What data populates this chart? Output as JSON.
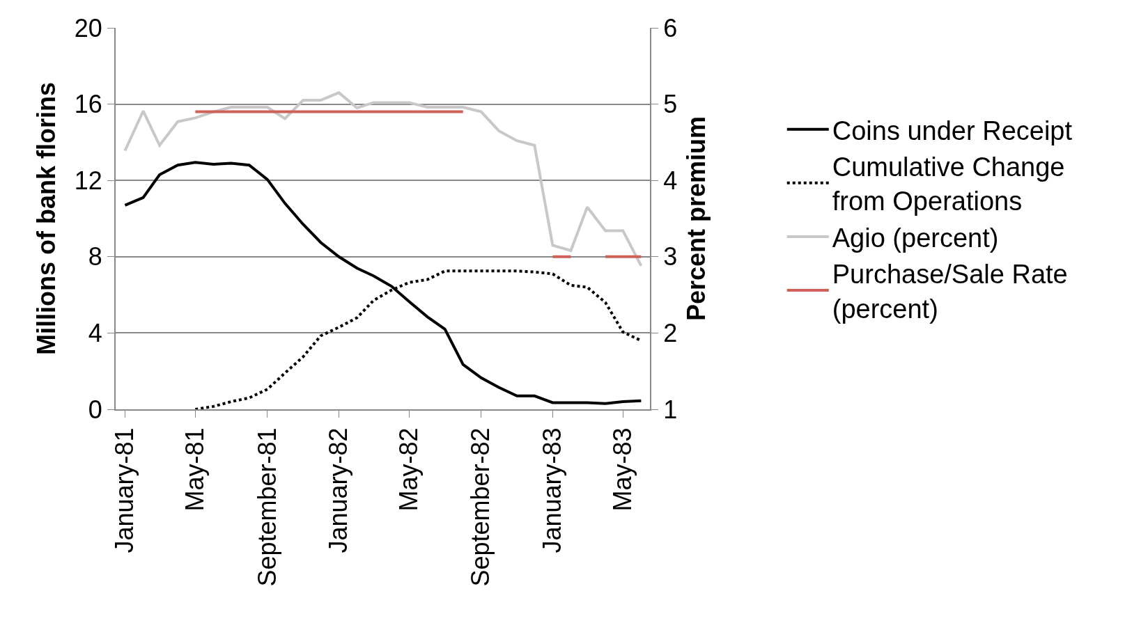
{
  "chart_data": {
    "type": "line",
    "ylabel": "Millions of bank florins",
    "y2label": "Percent premium",
    "x": [
      "1981-01",
      "1981-02",
      "1981-03",
      "1981-04",
      "1981-05",
      "1981-06",
      "1981-07",
      "1981-08",
      "1981-09",
      "1981-10",
      "1981-11",
      "1981-12",
      "1982-01",
      "1982-02",
      "1982-03",
      "1982-04",
      "1982-05",
      "1982-06",
      "1982-07",
      "1982-08",
      "1982-09",
      "1982-10",
      "1982-11",
      "1982-12",
      "1983-01",
      "1983-02",
      "1983-03",
      "1983-04",
      "1983-05",
      "1983-06"
    ],
    "xlim": [
      "1980-12-16",
      "1983-06-16"
    ],
    "xticks": [
      {
        "value": "1981-01",
        "label": "January-81"
      },
      {
        "value": "1981-05",
        "label": "May-81"
      },
      {
        "value": "1981-09",
        "label": "September-81"
      },
      {
        "value": "1982-01",
        "label": "January-82"
      },
      {
        "value": "1982-05",
        "label": "May-82"
      },
      {
        "value": "1982-09",
        "label": "September-82"
      },
      {
        "value": "1983-01",
        "label": "January-83"
      },
      {
        "value": "1983-05",
        "label": "May-83"
      }
    ],
    "ylim": [
      0,
      20
    ],
    "yticks": [
      0,
      4,
      8,
      12,
      16,
      20
    ],
    "y2lim": [
      1,
      6
    ],
    "y2ticks": [
      1,
      2,
      3,
      4,
      5,
      6
    ],
    "grid": "y",
    "legend": "right",
    "marker": "none",
    "series": [
      {
        "name": "Coins under Receipt",
        "color": "#000000",
        "line_style": "solid",
        "values": [
          10.7,
          11.1,
          12.3,
          12.8,
          12.95,
          12.85,
          12.9,
          12.8,
          12.05,
          10.8,
          9.7,
          8.75,
          8.0,
          7.4,
          7.0,
          6.45,
          5.65,
          4.85,
          4.2,
          2.35,
          1.65,
          1.15,
          0.7,
          0.7,
          0.35,
          0.35,
          0.35,
          0.3,
          0.4,
          0.45
        ]
      },
      {
        "name": "Cumulative Change from Operations",
        "color": "#000000",
        "line_style": "dotted",
        "values": [
          null,
          null,
          null,
          null,
          0,
          0.15,
          0.4,
          0.6,
          1.05,
          1.9,
          2.75,
          3.85,
          4.3,
          4.8,
          5.7,
          6.25,
          6.65,
          6.8,
          7.25,
          7.25,
          7.25,
          7.25,
          7.25,
          7.2,
          7.1,
          6.5,
          6.4,
          5.6,
          4.05,
          3.6
        ]
      },
      {
        "name": "Agio (percent)",
        "color": "#c8c8c8",
        "line_style": "solid",
        "axis": "y2",
        "values": [
          4.39,
          4.91,
          4.46,
          4.77,
          4.82,
          4.9,
          4.96,
          4.96,
          4.96,
          4.81,
          5.05,
          5.05,
          5.15,
          4.95,
          5.02,
          5.02,
          5.02,
          4.96,
          4.96,
          4.96,
          4.9,
          4.65,
          4.52,
          4.46,
          3.15,
          3.08,
          3.65,
          3.34,
          3.34,
          2.88
        ]
      },
      {
        "name": "Purchase/Sale Rate (percent)",
        "color": "#d0605a",
        "line_style": "solid",
        "axis": "y2",
        "values": [
          null,
          null,
          null,
          null,
          4.9,
          4.9,
          4.9,
          4.9,
          4.9,
          4.9,
          4.9,
          4.9,
          4.9,
          4.9,
          4.9,
          4.9,
          4.9,
          4.9,
          4.9,
          4.9,
          null,
          null,
          null,
          null,
          3.0,
          3.0,
          null,
          3.0,
          3.0,
          3.0
        ]
      }
    ]
  }
}
